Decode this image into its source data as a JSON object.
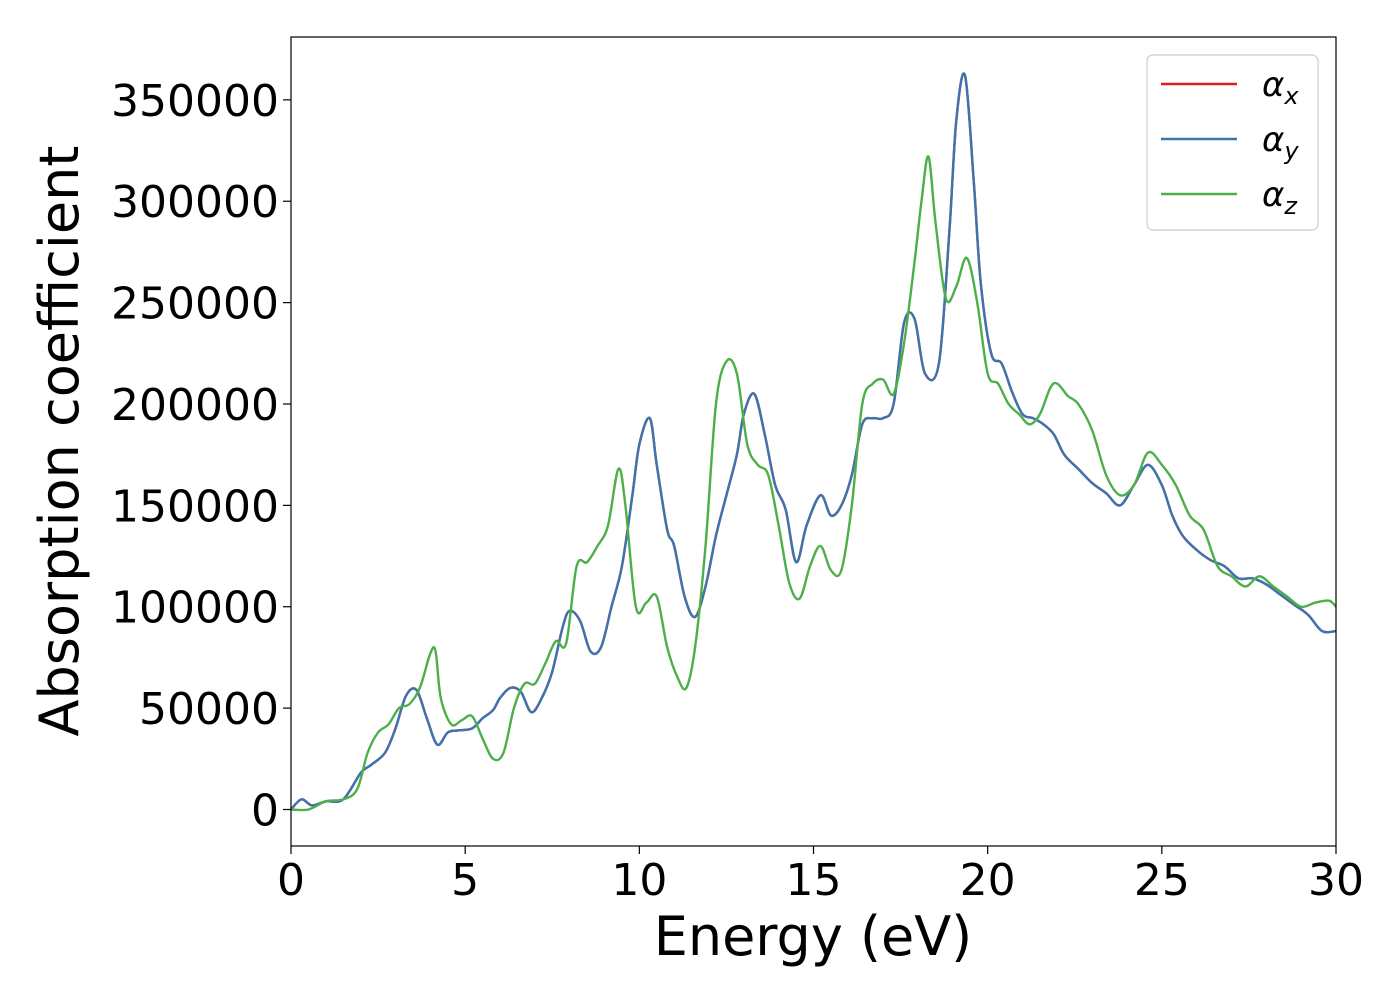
{
  "chart_data": {
    "type": "line",
    "title": "",
    "xlabel": "Energy (eV)",
    "ylabel": "Absorption coefficient",
    "xlim": [
      0,
      30
    ],
    "ylim": [
      -18000,
      381000
    ],
    "xticks": [
      0,
      5,
      10,
      15,
      20,
      25,
      30
    ],
    "xtick_labels": [
      "0",
      "5",
      "10",
      "15",
      "20",
      "25",
      "30"
    ],
    "yticks": [
      0,
      50000,
      100000,
      150000,
      200000,
      250000,
      300000,
      350000
    ],
    "ytick_labels": [
      "0",
      "50000",
      "100000",
      "150000",
      "200000",
      "250000",
      "300000",
      "350000"
    ],
    "grid": false,
    "legend_position": "top-right",
    "series": [
      {
        "name": "α_x",
        "legend_main": "α",
        "legend_sub": "x",
        "color": "#e41a1c",
        "x": [
          0,
          0.3,
          0.6,
          1.0,
          1.5,
          2.0,
          2.3,
          2.7,
          3.0,
          3.3,
          3.6,
          3.9,
          4.2,
          4.5,
          4.8,
          5.2,
          5.5,
          5.8,
          6.0,
          6.3,
          6.6,
          6.9,
          7.2,
          7.5,
          7.8,
          8.0,
          8.3,
          8.6,
          8.9,
          9.2,
          9.5,
          9.8,
          10.0,
          10.3,
          10.5,
          10.8,
          11.0,
          11.3,
          11.6,
          11.9,
          12.2,
          12.5,
          12.8,
          13.0,
          13.3,
          13.6,
          13.9,
          14.2,
          14.5,
          14.8,
          15.2,
          15.5,
          15.8,
          16.1,
          16.4,
          16.7,
          17.0,
          17.3,
          17.6,
          17.9,
          18.2,
          18.6,
          18.9,
          19.1,
          19.35,
          19.6,
          19.8,
          20.1,
          20.4,
          20.7,
          21.0,
          21.3,
          21.6,
          21.9,
          22.2,
          22.6,
          23.0,
          23.4,
          23.8,
          24.2,
          24.6,
          25.0,
          25.3,
          25.6,
          26.0,
          26.4,
          26.8,
          27.2,
          27.6,
          28.0,
          28.4,
          28.8,
          29.2,
          29.6,
          30.0
        ],
        "values": [
          0,
          5000,
          2000,
          4000,
          5000,
          18000,
          22000,
          28000,
          40000,
          56000,
          59000,
          45000,
          32000,
          38000,
          39000,
          40000,
          45000,
          49000,
          55000,
          60000,
          58000,
          48000,
          55000,
          68000,
          90000,
          98000,
          93000,
          78000,
          80000,
          100000,
          120000,
          155000,
          180000,
          193000,
          170000,
          138000,
          130000,
          105000,
          95000,
          110000,
          135000,
          155000,
          175000,
          195000,
          205000,
          185000,
          160000,
          148000,
          122000,
          140000,
          155000,
          145000,
          150000,
          165000,
          190000,
          193000,
          193000,
          200000,
          240000,
          242000,
          215000,
          220000,
          285000,
          340000,
          362000,
          310000,
          260000,
          225000,
          220000,
          206000,
          195000,
          193000,
          190000,
          185000,
          175000,
          168000,
          161000,
          156000,
          150000,
          160000,
          170000,
          160000,
          145000,
          135000,
          128000,
          123000,
          120000,
          114000,
          114000,
          111000,
          106000,
          101000,
          96000,
          88000,
          88000
        ]
      },
      {
        "name": "α_y",
        "legend_main": "α",
        "legend_sub": "y",
        "color": "#3b75af",
        "x": [
          0,
          0.3,
          0.6,
          1.0,
          1.5,
          2.0,
          2.3,
          2.7,
          3.0,
          3.3,
          3.6,
          3.9,
          4.2,
          4.5,
          4.8,
          5.2,
          5.5,
          5.8,
          6.0,
          6.3,
          6.6,
          6.9,
          7.2,
          7.5,
          7.8,
          8.0,
          8.3,
          8.6,
          8.9,
          9.2,
          9.5,
          9.8,
          10.0,
          10.3,
          10.5,
          10.8,
          11.0,
          11.3,
          11.6,
          11.9,
          12.2,
          12.5,
          12.8,
          13.0,
          13.3,
          13.6,
          13.9,
          14.2,
          14.5,
          14.8,
          15.2,
          15.5,
          15.8,
          16.1,
          16.4,
          16.7,
          17.0,
          17.3,
          17.6,
          17.9,
          18.2,
          18.6,
          18.9,
          19.1,
          19.35,
          19.6,
          19.8,
          20.1,
          20.4,
          20.7,
          21.0,
          21.3,
          21.6,
          21.9,
          22.2,
          22.6,
          23.0,
          23.4,
          23.8,
          24.2,
          24.6,
          25.0,
          25.3,
          25.6,
          26.0,
          26.4,
          26.8,
          27.2,
          27.6,
          28.0,
          28.4,
          28.8,
          29.2,
          29.6,
          30.0
        ],
        "values": [
          0,
          5000,
          2000,
          4000,
          5000,
          18000,
          22000,
          28000,
          40000,
          56000,
          59000,
          45000,
          32000,
          38000,
          39000,
          40000,
          45000,
          49000,
          55000,
          60000,
          58000,
          48000,
          55000,
          68000,
          90000,
          98000,
          93000,
          78000,
          80000,
          100000,
          120000,
          155000,
          180000,
          193000,
          170000,
          138000,
          130000,
          105000,
          95000,
          110000,
          135000,
          155000,
          175000,
          195000,
          205000,
          185000,
          160000,
          148000,
          122000,
          140000,
          155000,
          145000,
          150000,
          165000,
          190000,
          193000,
          193000,
          200000,
          240000,
          242000,
          215000,
          220000,
          285000,
          340000,
          362000,
          310000,
          260000,
          225000,
          220000,
          206000,
          195000,
          193000,
          190000,
          185000,
          175000,
          168000,
          161000,
          156000,
          150000,
          160000,
          170000,
          160000,
          145000,
          135000,
          128000,
          123000,
          120000,
          114000,
          114000,
          111000,
          106000,
          101000,
          96000,
          88000,
          88000
        ]
      },
      {
        "name": "α_z",
        "legend_main": "α",
        "legend_sub": "z",
        "color": "#4daf4a",
        "x": [
          0,
          0.5,
          1.0,
          1.5,
          1.9,
          2.2,
          2.5,
          2.8,
          3.1,
          3.4,
          3.7,
          4.0,
          4.15,
          4.3,
          4.6,
          4.9,
          5.2,
          5.5,
          5.8,
          6.1,
          6.4,
          6.7,
          7.0,
          7.3,
          7.6,
          7.9,
          8.2,
          8.5,
          8.8,
          9.1,
          9.4,
          9.6,
          9.9,
          10.2,
          10.5,
          10.8,
          11.1,
          11.35,
          11.6,
          11.9,
          12.2,
          12.5,
          12.8,
          13.1,
          13.4,
          13.7,
          14.0,
          14.3,
          14.6,
          14.9,
          15.2,
          15.5,
          15.8,
          16.1,
          16.4,
          16.7,
          17.0,
          17.3,
          17.6,
          17.9,
          18.1,
          18.3,
          18.5,
          18.8,
          19.1,
          19.4,
          19.7,
          20.0,
          20.3,
          20.6,
          20.9,
          21.2,
          21.5,
          21.8,
          22.0,
          22.3,
          22.6,
          23.0,
          23.4,
          23.8,
          24.2,
          24.6,
          25.0,
          25.4,
          25.8,
          26.2,
          26.6,
          27.0,
          27.4,
          27.8,
          28.2,
          28.6,
          29.0,
          29.4,
          29.8,
          30.0
        ],
        "values": [
          0,
          0,
          4000,
          5000,
          10000,
          28000,
          38000,
          42000,
          50000,
          52000,
          60000,
          77000,
          78000,
          55000,
          42000,
          44000,
          46000,
          35000,
          25000,
          28000,
          50000,
          62000,
          62000,
          72000,
          83000,
          82000,
          120000,
          122000,
          130000,
          140000,
          168000,
          150000,
          100000,
          102000,
          105000,
          80000,
          65000,
          60000,
          80000,
          130000,
          200000,
          221000,
          215000,
          180000,
          170000,
          165000,
          140000,
          112000,
          104000,
          120000,
          130000,
          118000,
          118000,
          150000,
          200000,
          210000,
          212000,
          205000,
          230000,
          270000,
          300000,
          322000,
          290000,
          252000,
          258000,
          272000,
          250000,
          215000,
          210000,
          200000,
          195000,
          190000,
          195000,
          208000,
          210000,
          204000,
          200000,
          187000,
          165000,
          155000,
          160000,
          176000,
          170000,
          160000,
          145000,
          138000,
          120000,
          115000,
          110000,
          115000,
          110000,
          105000,
          100000,
          102000,
          103000,
          100000
        ]
      }
    ]
  }
}
